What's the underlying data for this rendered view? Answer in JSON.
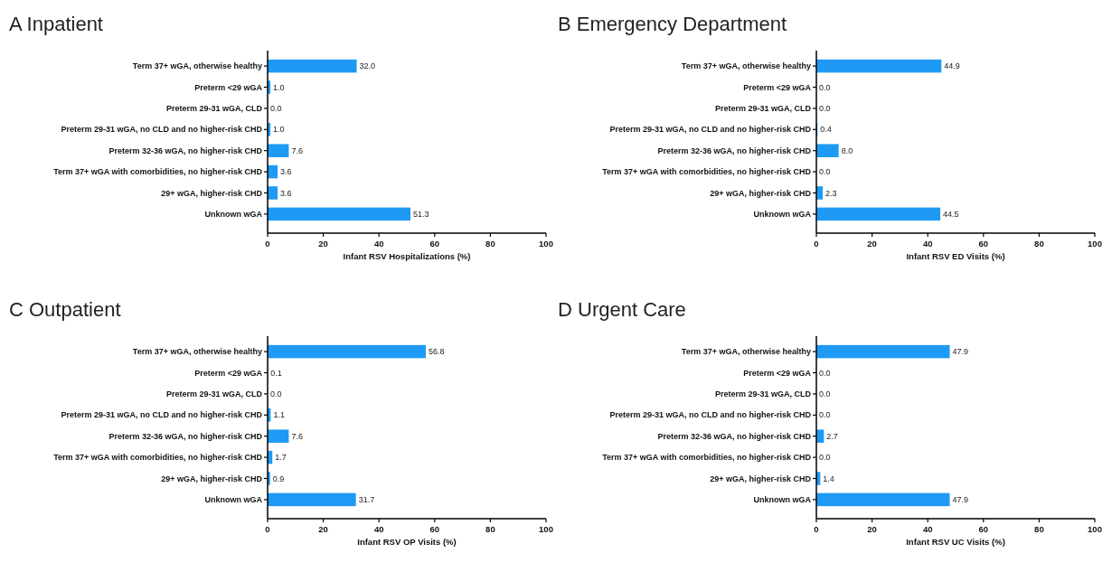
{
  "chart_data": [
    {
      "type": "bar",
      "orientation": "horizontal",
      "title": "A Inpatient",
      "xlabel": "Infant RSV Hospitalizations (%)",
      "categories": [
        "Term 37+ wGA, otherwise healthy",
        "Preterm <29 wGA",
        "Preterm 29-31 wGA, CLD",
        "Preterm 29-31 wGA, no CLD and no higher-risk CHD",
        "Preterm 32-36 wGA, no higher-risk CHD",
        "Term 37+ wGA with comorbidities, no higher-risk CHD",
        "29+ wGA, higher-risk CHD",
        "Unknown wGA"
      ],
      "values": [
        32.0,
        1.0,
        0.0,
        1.0,
        7.6,
        3.6,
        3.6,
        51.3
      ],
      "value_labels": [
        "32.0",
        "1.0",
        "0.0",
        "1.0",
        "7.6",
        "3.6",
        "3.6",
        "51.3"
      ],
      "color": "#1e9af5",
      "xlim": [
        0,
        100
      ],
      "xticks": [
        0,
        20,
        40,
        60,
        80,
        100
      ],
      "grid": false
    },
    {
      "type": "bar",
      "orientation": "horizontal",
      "title": "B Emergency Department",
      "xlabel": "Infant RSV ED Visits (%)",
      "categories": [
        "Term 37+ wGA, otherwise healthy",
        "Preterm <29 wGA",
        "Preterm 29-31 wGA, CLD",
        "Preterm 29-31 wGA, no CLD and no higher-risk CHD",
        "Preterm 32-36 wGA, no higher-risk CHD",
        "Term 37+ wGA with comorbidities, no higher-risk CHD",
        "29+ wGA, higher-risk CHD",
        "Unknown wGA"
      ],
      "values": [
        44.9,
        0.0,
        0.0,
        0.4,
        8.0,
        0.0,
        2.3,
        44.5
      ],
      "value_labels": [
        "44.9",
        "0.0",
        "0.0",
        "0.4",
        "8.0",
        "0.0",
        "2.3",
        "44.5"
      ],
      "color": "#1e9af5",
      "xlim": [
        0,
        100
      ],
      "xticks": [
        0,
        20,
        40,
        60,
        80,
        100
      ],
      "grid": false
    },
    {
      "type": "bar",
      "orientation": "horizontal",
      "title": "C Outpatient",
      "xlabel": "Infant RSV OP Visits (%)",
      "categories": [
        "Term 37+ wGA, otherwise healthy",
        "Preterm <29 wGA",
        "Preterm 29-31 wGA, CLD",
        "Preterm 29-31 wGA, no CLD and no higher-risk CHD",
        "Preterm 32-36 wGA, no higher-risk CHD",
        "Term 37+ wGA with comorbidities, no higher-risk CHD",
        "29+ wGA, higher-risk CHD",
        "Unknown wGA"
      ],
      "values": [
        56.8,
        0.1,
        0.0,
        1.1,
        7.6,
        1.7,
        0.9,
        31.7
      ],
      "value_labels": [
        "56.8",
        "0.1",
        "0.0",
        "1.1",
        "7.6",
        "1.7",
        "0.9",
        "31.7"
      ],
      "color": "#1e9af5",
      "xlim": [
        0,
        100
      ],
      "xticks": [
        0,
        20,
        40,
        60,
        80,
        100
      ],
      "grid": false
    },
    {
      "type": "bar",
      "orientation": "horizontal",
      "title": "D Urgent Care",
      "xlabel": "Infant RSV UC Visits (%)",
      "categories": [
        "Term 37+ wGA, otherwise healthy",
        "Preterm <29 wGA",
        "Preterm 29-31 wGA, CLD",
        "Preterm 29-31 wGA, no CLD and no higher-risk CHD",
        "Preterm 32-36 wGA, no higher-risk CHD",
        "Term 37+ wGA with comorbidities, no higher-risk CHD",
        "29+ wGA, higher-risk CHD",
        "Unknown wGA"
      ],
      "values": [
        47.9,
        0.0,
        0.0,
        0.0,
        2.7,
        0.0,
        1.4,
        47.9
      ],
      "value_labels": [
        "47.9",
        "0.0",
        "0.0",
        "0.0",
        "2.7",
        "0.0",
        "1.4",
        "47.9"
      ],
      "color": "#1e9af5",
      "xlim": [
        0,
        100
      ],
      "xticks": [
        0,
        20,
        40,
        60,
        80,
        100
      ],
      "grid": false
    }
  ]
}
